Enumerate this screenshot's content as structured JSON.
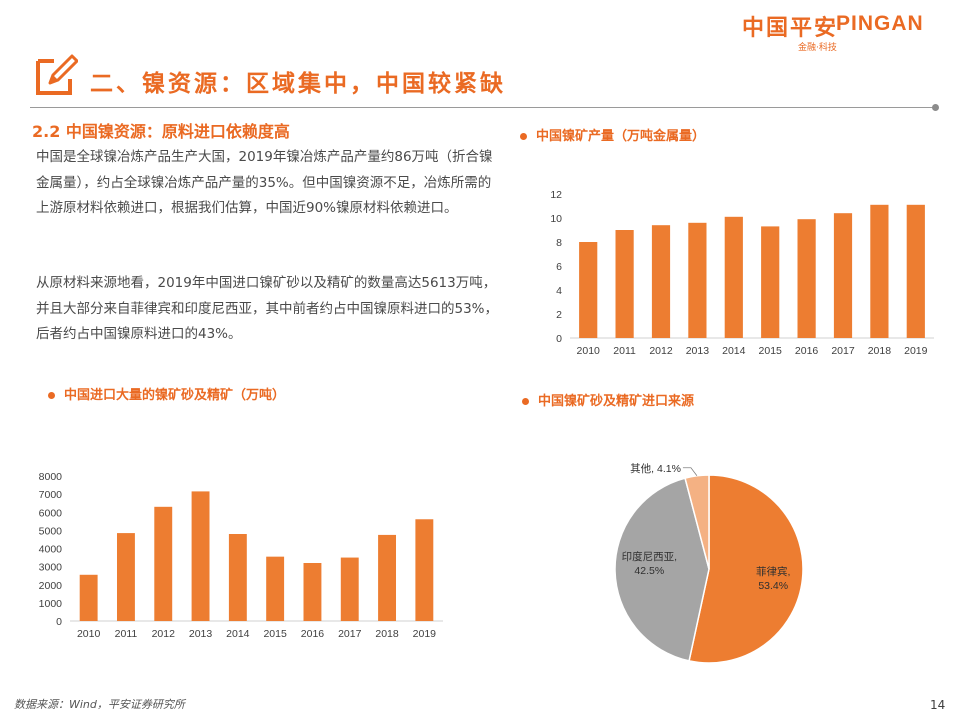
{
  "logo": {
    "cn": "中国平安",
    "en": "PINGAN",
    "sub": "金融·科技"
  },
  "header": {
    "title": "二、镍资源：区域集中，中国较紧缺"
  },
  "section": {
    "heading": "2.2 中国镍资源：原料进口依赖度高",
    "paragraphs": [
      "中国是全球镍冶炼产品生产大国，2019年镍冶炼产品产量约86万吨（折合镍金属量），约占全球镍冶炼产品产量的35%。但中国镍资源不足，冶炼所需的上游原材料依赖进口，根据我们估算，中国近90%镍原材料依赖进口。",
      "从原材料来源地看，2019年中国进口镍矿砂以及精矿的数量高达5613万吨，并且大部分来自菲律宾和印度尼西亚，其中前者约占中国镍原料进口的53%，后者约占中国镍原料进口的43%。"
    ]
  },
  "colors": {
    "accent": "#ea6a23",
    "bar": "#ed7d31",
    "gray": "#a5a5a5",
    "light": "#f4b183",
    "text": "#404040"
  },
  "chart_data": [
    {
      "type": "bar",
      "title": "中国镍矿产量（万吨金属量）",
      "categories": [
        "2010",
        "2011",
        "2012",
        "2013",
        "2014",
        "2015",
        "2016",
        "2017",
        "2018",
        "2019"
      ],
      "values": [
        8.0,
        9.0,
        9.4,
        9.6,
        10.1,
        9.3,
        9.9,
        10.4,
        11.1,
        11.1
      ],
      "ylim": [
        0,
        12
      ],
      "yticks": [
        "0",
        "2",
        "4",
        "6",
        "8",
        "10",
        "12"
      ]
    },
    {
      "type": "bar",
      "title": "中国进口大量的镍矿砂及精矿（万吨）",
      "categories": [
        "2010",
        "2011",
        "2012",
        "2013",
        "2014",
        "2015",
        "2016",
        "2017",
        "2018",
        "2019"
      ],
      "values": [
        2550,
        4850,
        6300,
        7150,
        4800,
        3550,
        3200,
        3500,
        4750,
        5613
      ],
      "ylim": [
        0,
        8000
      ],
      "yticks": [
        "0",
        "1000",
        "2000",
        "3000",
        "4000",
        "5000",
        "6000",
        "7000",
        "8000"
      ]
    },
    {
      "type": "pie",
      "title": "中国镍矿砂及精矿进口来源",
      "slices": [
        {
          "name": "菲律宾",
          "value": 53.4,
          "label": "53.4%"
        },
        {
          "name": "印度尼西亚",
          "value": 42.5,
          "label": "42.5%"
        },
        {
          "name": "其他",
          "value": 4.1,
          "label": "4.1%"
        }
      ]
    }
  ],
  "footer": {
    "source": "数据来源：Wind，平安证券研究所",
    "page": "14"
  }
}
